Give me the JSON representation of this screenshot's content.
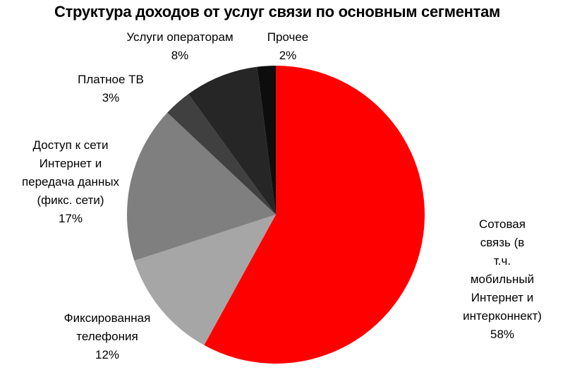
{
  "chart_data": {
    "type": "pie",
    "title": "Структура доходов от услуг связи по основным сегментам",
    "categories": [
      "Сотовая связь (в\nт.ч. мобильный\nИнтернет и\nинтерконнект)",
      "Фиксированная\nтелефония",
      "Доступ к сети\nИнтернет и\nпередача данных\n(фикс. сети)",
      "Платное ТВ",
      "Услуги операторам",
      "Прочее"
    ],
    "values": [
      58,
      12,
      17,
      3,
      8,
      2
    ],
    "value_labels": [
      "58%",
      "12%",
      "17%",
      "3%",
      "8%",
      "2%"
    ],
    "colors": [
      "#ff0000",
      "#a6a6a6",
      "#7f7f7f",
      "#404040",
      "#262626",
      "#0d0d0d"
    ]
  }
}
